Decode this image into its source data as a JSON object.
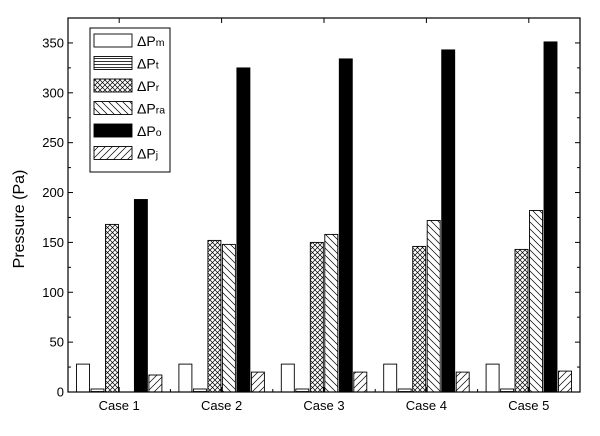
{
  "chart_data": {
    "type": "bar",
    "title": "",
    "xlabel": "",
    "ylabel": "Pressure (Pa)",
    "ylim": [
      0,
      375
    ],
    "yticks": [
      0,
      50,
      100,
      150,
      200,
      250,
      300,
      350
    ],
    "grid": false,
    "legend_position": "top-left",
    "categories": [
      "Case 1",
      "Case 2",
      "Case 3",
      "Case 4",
      "Case 5"
    ],
    "series": [
      {
        "name": "ΔPm",
        "base": "ΔP",
        "sub": "m",
        "pattern": "empty",
        "values": [
          28,
          28,
          28,
          28,
          28
        ]
      },
      {
        "name": "ΔPt",
        "base": "ΔP",
        "sub": "t",
        "pattern": "hlines",
        "values": [
          3,
          3,
          3,
          3,
          3
        ]
      },
      {
        "name": "ΔPr",
        "base": "ΔP",
        "sub": "r",
        "pattern": "crosshatch",
        "values": [
          168,
          152,
          150,
          146,
          143
        ]
      },
      {
        "name": "ΔPra",
        "base": "ΔP",
        "sub": "ra",
        "pattern": "backslash",
        "values": [
          0,
          148,
          158,
          172,
          182
        ]
      },
      {
        "name": "ΔPo",
        "base": "ΔP",
        "sub": "o",
        "pattern": "solid",
        "values": [
          193,
          325,
          334,
          343,
          351
        ]
      },
      {
        "name": "ΔPj",
        "base": "ΔP",
        "sub": "j",
        "pattern": "slash",
        "values": [
          17,
          20,
          20,
          20,
          21
        ]
      }
    ]
  }
}
